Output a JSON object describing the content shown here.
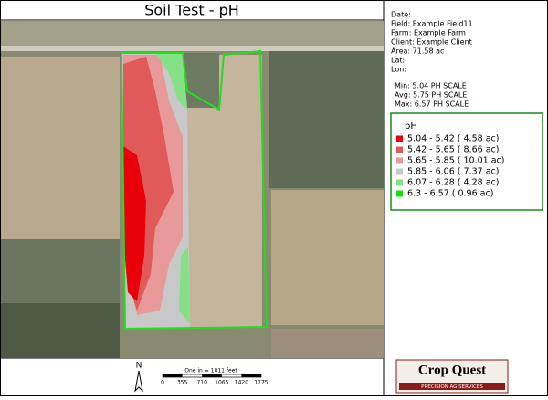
{
  "title": "Soil Test - pH",
  "info": [
    "Date:",
    "Field: Example Field11",
    "Farm: Example Farm",
    "Client: Example Client",
    "Area: 71.58 ac",
    "Lat:",
    "Lon:"
  ],
  "stats": [
    "Min: 5.04 PH SCALE",
    "Avg: 5.75 PH SCALE",
    "Max: 6.57 PH SCALE"
  ],
  "legend": {
    "title": "pH",
    "items": [
      {
        "label": "5.04 - 5.42 ( 4.58 ac)",
        "color": "#e8000b"
      },
      {
        "label": "5.42 - 5.65 ( 8.66 ac)",
        "color": "#e05a5a"
      },
      {
        "label": "5.65 - 5.85 ( 10.01 ac)",
        "color": "#e89a9a"
      },
      {
        "label": "5.85 - 6.06 ( 7.37 ac)",
        "color": "#c8c8c8"
      },
      {
        "label": "6.07 - 6.28 ( 4.28 ac)",
        "color": "#86e086"
      },
      {
        "label": "6.3 - 6.57 ( 0.96 ac)",
        "color": "#10e010"
      }
    ]
  },
  "north": "N",
  "scale": {
    "caption": "One in = 1011 feet",
    "ticks": [
      0,
      355,
      710,
      1065,
      1420,
      1775
    ]
  },
  "logo": {
    "name": "Crop Quest",
    "tagline": "PRECISION AG SERVICES"
  }
}
